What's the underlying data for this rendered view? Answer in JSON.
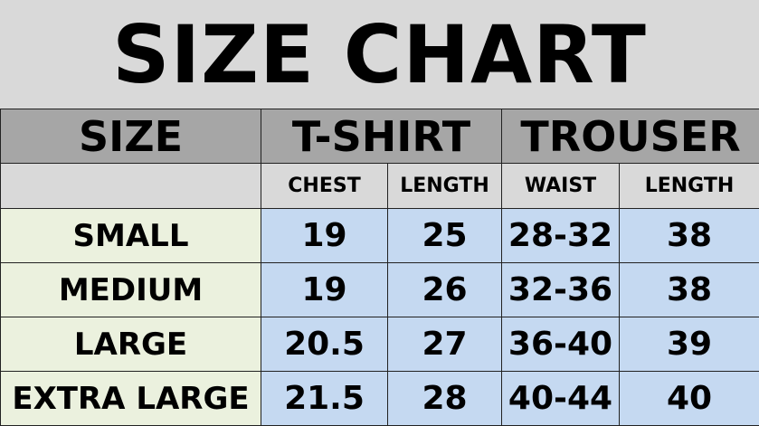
{
  "title": "SIZE CHART",
  "header": {
    "size": "SIZE",
    "tshirt": "T-SHIRT",
    "trouser": "TROUSER"
  },
  "subheader": [
    "CHEST",
    "LENGTH",
    "WAIST",
    "LENGTH"
  ],
  "rows": [
    {
      "size": "SMALL",
      "chest": "19",
      "tlength": "25",
      "waist": "28-32",
      "length": "38"
    },
    {
      "size": "MEDIUM",
      "chest": "19",
      "tlength": "26",
      "waist": "32-36",
      "length": "38"
    },
    {
      "size": "LARGE",
      "chest": "20.5",
      "tlength": "27",
      "waist": "36-40",
      "length": "39"
    },
    {
      "size": "EXTRA LARGE",
      "chest": "21.5",
      "tlength": "28",
      "waist": "40-44",
      "length": "40"
    }
  ],
  "colors": {
    "background": "#d9d9d9",
    "header": "#a6a6a6",
    "size_column": "#ebf1de",
    "data_cells": "#c5d9f1"
  }
}
